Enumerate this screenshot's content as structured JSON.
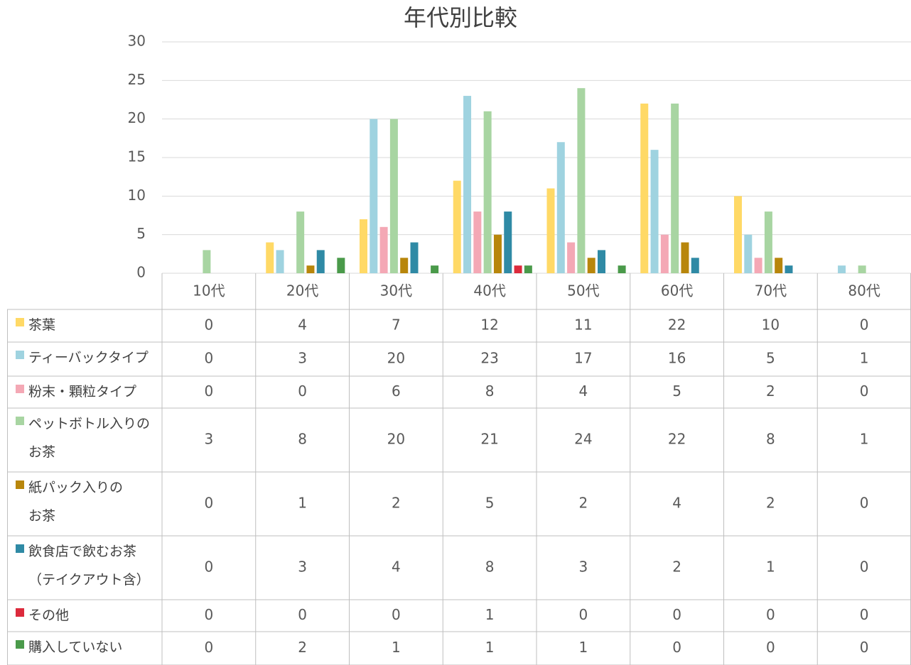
{
  "chart_data": {
    "type": "bar",
    "title": "年代別比較",
    "categories": [
      "10代",
      "20代",
      "30代",
      "40代",
      "50代",
      "60代",
      "70代",
      "80代"
    ],
    "series": [
      {
        "name": "茶葉",
        "color": "#ffd966",
        "values": [
          0,
          4,
          7,
          12,
          11,
          22,
          10,
          0
        ]
      },
      {
        "name": "ティーバックタイプ",
        "color": "#9fd3e0",
        "values": [
          0,
          3,
          20,
          23,
          17,
          16,
          5,
          1
        ]
      },
      {
        "name": "粉末・顆粒タイプ",
        "color": "#f4a8b5",
        "values": [
          0,
          0,
          6,
          8,
          4,
          5,
          2,
          0
        ]
      },
      {
        "name": "ペットボトル入りの\nお茶",
        "color": "#a8d5a2",
        "values": [
          3,
          8,
          20,
          21,
          24,
          22,
          8,
          1
        ]
      },
      {
        "name": "紙パック入りの\nお茶",
        "color": "#b8860b",
        "values": [
          0,
          1,
          2,
          5,
          2,
          4,
          2,
          0
        ]
      },
      {
        "name": "飲食店で飲むお茶\n（テイクアウト含）",
        "color": "#2f8aa5",
        "values": [
          0,
          3,
          4,
          8,
          3,
          2,
          1,
          0
        ]
      },
      {
        "name": "その他",
        "color": "#dc2a3c",
        "values": [
          0,
          0,
          0,
          1,
          0,
          0,
          0,
          0
        ]
      },
      {
        "name": "購入していない",
        "color": "#4a9a4a",
        "values": [
          0,
          2,
          1,
          1,
          1,
          0,
          0,
          0
        ]
      }
    ],
    "ylim": [
      0,
      30
    ],
    "yticks": [
      0,
      5,
      10,
      15,
      20,
      25,
      30
    ],
    "grid": true
  }
}
